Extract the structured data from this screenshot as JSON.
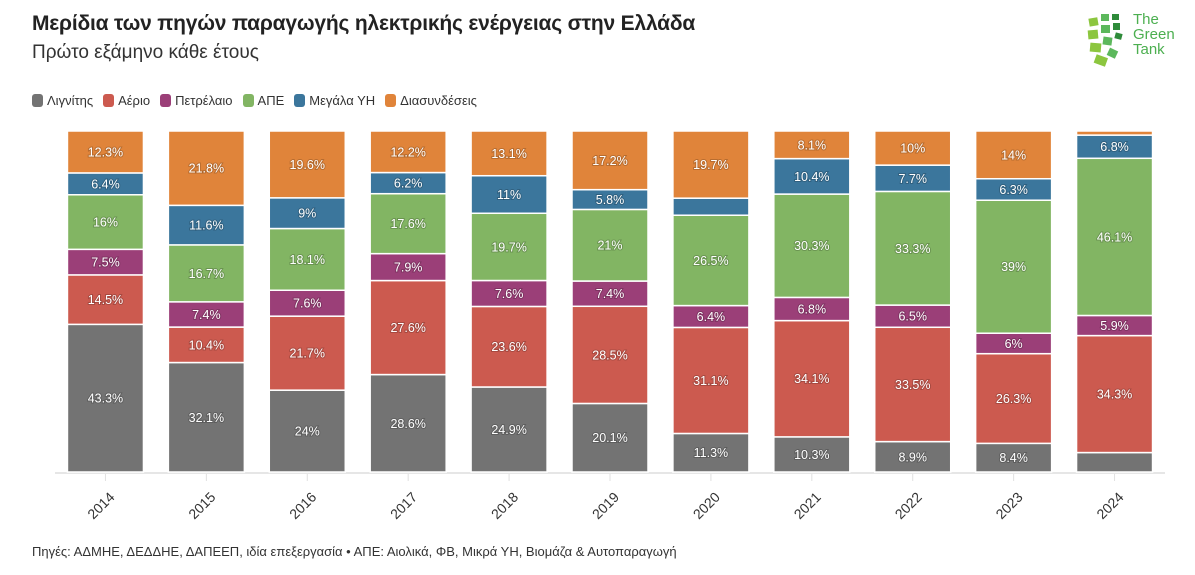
{
  "header": {
    "title": "Μερίδια των πηγών παραγωγής ηλεκτρικής ενέργειας στην Ελλάδα",
    "subtitle": "Πρώτο εξάμηνο κάθε έτους"
  },
  "logo": {
    "lines": [
      "The",
      "Green",
      "Tank"
    ],
    "color": "#4caf50"
  },
  "footer": {
    "text": "Πηγές: ΑΔΜΗΕ, ΔΕΔΔΗΕ, ΔΑΠΕΕΠ, ιδία επεξεργασία • ΑΠΕ: Αιολικά, ΦΒ, Μικρά ΥΗ, Βιομάζα & Αυτοπαραγωγή"
  },
  "chart_data": {
    "type": "bar",
    "stacked": true,
    "title": "Μερίδια των πηγών παραγωγής ηλεκτρικής ενέργειας στην Ελλάδα",
    "subtitle": "Πρώτο εξάμηνο κάθε έτους",
    "xlabel": "",
    "ylabel": "",
    "ylim": [
      0,
      100
    ],
    "unit": "%",
    "legend_position": "top-left",
    "categories": [
      "2014",
      "2015",
      "2016",
      "2017",
      "2018",
      "2019",
      "2020",
      "2021",
      "2022",
      "2023",
      "2024"
    ],
    "series": [
      {
        "name": "Λιγνίτης",
        "color": "#737373",
        "values": [
          43.3,
          32.1,
          24,
          28.6,
          24.9,
          20.1,
          11.3,
          10.3,
          8.9,
          8.4,
          5.7
        ],
        "labels": [
          "43.3%",
          "32.1%",
          "24%",
          "28.6%",
          "24.9%",
          "20.1%",
          "11.3%",
          "10.3%",
          "8.9%",
          "8.4%",
          ""
        ]
      },
      {
        "name": "Αέριο",
        "color": "#cc5a4f",
        "values": [
          14.5,
          10.4,
          21.7,
          27.6,
          23.6,
          28.5,
          31.1,
          34.1,
          33.5,
          26.3,
          34.3
        ],
        "labels": [
          "14.5%",
          "10.4%",
          "21.7%",
          "27.6%",
          "23.6%",
          "28.5%",
          "31.1%",
          "34.1%",
          "33.5%",
          "26.3%",
          "34.3%"
        ]
      },
      {
        "name": "Πετρέλαιο",
        "color": "#9b3f78",
        "values": [
          7.5,
          7.4,
          7.6,
          7.9,
          7.6,
          7.4,
          6.4,
          6.8,
          6.5,
          6,
          5.9
        ],
        "labels": [
          "7.5%",
          "7.4%",
          "7.6%",
          "7.9%",
          "7.6%",
          "7.4%",
          "6.4%",
          "6.8%",
          "6.5%",
          "6%",
          "5.9%"
        ]
      },
      {
        "name": "ΑΠΕ",
        "color": "#82b563",
        "values": [
          16,
          16.7,
          18.1,
          17.6,
          19.7,
          21,
          26.5,
          30.3,
          33.3,
          39,
          46.1
        ],
        "labels": [
          "16%",
          "16.7%",
          "18.1%",
          "17.6%",
          "19.7%",
          "21%",
          "26.5%",
          "30.3%",
          "33.3%",
          "39%",
          "46.1%"
        ]
      },
      {
        "name": "Μεγάλα ΥΗ",
        "color": "#3b769c",
        "values": [
          6.4,
          11.6,
          9,
          6.2,
          11,
          5.8,
          5.0,
          10.4,
          7.7,
          6.3,
          6.8
        ],
        "labels": [
          "6.4%",
          "11.6%",
          "9%",
          "6.2%",
          "11%",
          "5.8%",
          "",
          "10.4%",
          "7.7%",
          "6.3%",
          "6.8%"
        ]
      },
      {
        "name": "Διασυνδέσεις",
        "color": "#e0843a",
        "values": [
          12.3,
          21.8,
          19.6,
          12.2,
          13.1,
          17.2,
          19.7,
          8.1,
          10,
          14,
          1.2
        ],
        "labels": [
          "12.3%",
          "21.8%",
          "19.6%",
          "12.2%",
          "13.1%",
          "17.2%",
          "19.7%",
          "8.1%",
          "10%",
          "14%",
          ""
        ]
      }
    ]
  }
}
